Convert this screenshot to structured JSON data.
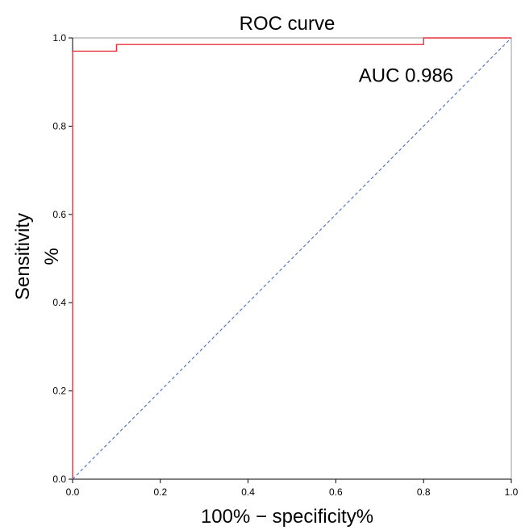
{
  "chart_data": {
    "type": "line",
    "title": "ROC curve",
    "xlabel": "100% − specificity%",
    "ylabel_lines": [
      "Sensitivity",
      "%"
    ],
    "xlim": [
      0,
      1
    ],
    "ylim": [
      0,
      1
    ],
    "xticks": [
      "0.0",
      "0.2",
      "0.4",
      "0.6",
      "0.8",
      "1.0"
    ],
    "yticks": [
      "0.0",
      "0.2",
      "0.4",
      "0.6",
      "0.8",
      "1.0"
    ],
    "grid": false,
    "annotations": [
      {
        "text": "AUC 0.986",
        "x": 0.76,
        "y": 0.9
      }
    ],
    "series": [
      {
        "color": "#e8323c",
        "style": "solid",
        "x": [
          0,
          0,
          0.1,
          0.1,
          0.8,
          0.8,
          1.0
        ],
        "y": [
          0,
          0.97,
          0.97,
          0.985,
          0.985,
          1.0,
          1.0
        ]
      },
      {
        "color": "#5b78c4",
        "style": "dashed",
        "x": [
          0,
          1
        ],
        "y": [
          0,
          1
        ]
      }
    ]
  }
}
